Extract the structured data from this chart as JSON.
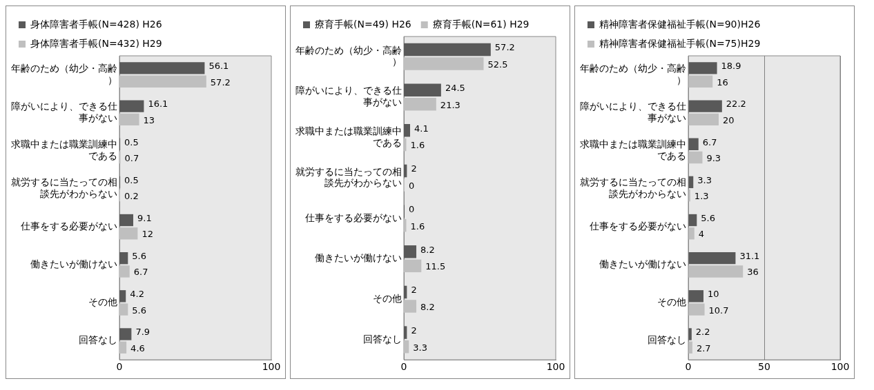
{
  "chart_data": [
    {
      "type": "bar",
      "orientation": "horizontal",
      "categories": [
        "年齢のため（幼少・高齢）",
        "障がいにより、できる仕事がない",
        "求職中または職業訓練中である",
        "就労するに当たっての相談先がわからない",
        "仕事をする必要がない",
        "働きたいが働けない",
        "その他",
        "回答なし"
      ],
      "series": [
        {
          "name": "身体障害者手帳(N=428) H26",
          "color": "#595959",
          "values": [
            56.1,
            16.1,
            0.5,
            0.5,
            9.1,
            5.6,
            4.2,
            7.9
          ]
        },
        {
          "name": "身体障害者手帳(N=432) H29",
          "color": "#bfbfbf",
          "values": [
            57.2,
            13,
            0.7,
            0.2,
            12,
            6.7,
            5.6,
            4.6
          ]
        }
      ],
      "xlim": [
        0,
        100
      ],
      "xticks": [
        0,
        100
      ],
      "grid": false,
      "legend": "top",
      "data_labels": true
    },
    {
      "type": "bar",
      "orientation": "horizontal",
      "categories": [
        "年齢のため（幼少・高齢）",
        "障がいにより、できる仕事がない",
        "求職中または職業訓練中である",
        "就労するに当たっての相談先がわからない",
        "仕事をする必要がない",
        "働きたいが働けない",
        "その他",
        "回答なし"
      ],
      "series": [
        {
          "name": "療育手帳(N=49) H26",
          "color": "#595959",
          "values": [
            57.2,
            24.5,
            4.1,
            2,
            0,
            8.2,
            2,
            2
          ]
        },
        {
          "name": "療育手帳(N=61) H29",
          "color": "#bfbfbf",
          "values": [
            52.5,
            21.3,
            1.6,
            0,
            1.6,
            11.5,
            8.2,
            3.3
          ]
        }
      ],
      "xlim": [
        0,
        100
      ],
      "xticks": [
        0,
        100
      ],
      "grid": false,
      "legend": "top",
      "data_labels": true
    },
    {
      "type": "bar",
      "orientation": "horizontal",
      "categories": [
        "年齢のため（幼少・高齢）",
        "障がいにより、できる仕事がない",
        "求職中または職業訓練中である",
        "就労するに当たっての相談先がわからない",
        "仕事をする必要がない",
        "働きたいが働けない",
        "その他",
        "回答なし"
      ],
      "series": [
        {
          "name": "精神障害者保健福祉手帳(N=90)H26",
          "color": "#595959",
          "values": [
            18.9,
            22.2,
            6.7,
            3.3,
            5.6,
            31.1,
            10,
            2.2
          ]
        },
        {
          "name": "精神障害者保健福祉手帳(N=75)H29",
          "color": "#bfbfbf",
          "values": [
            16,
            20,
            9.3,
            1.3,
            4,
            36,
            10.7,
            2.7
          ]
        }
      ],
      "xlim": [
        0,
        100
      ],
      "xticks": [
        0,
        50,
        100
      ],
      "grid": "x",
      "legend": "top",
      "data_labels": true
    }
  ]
}
